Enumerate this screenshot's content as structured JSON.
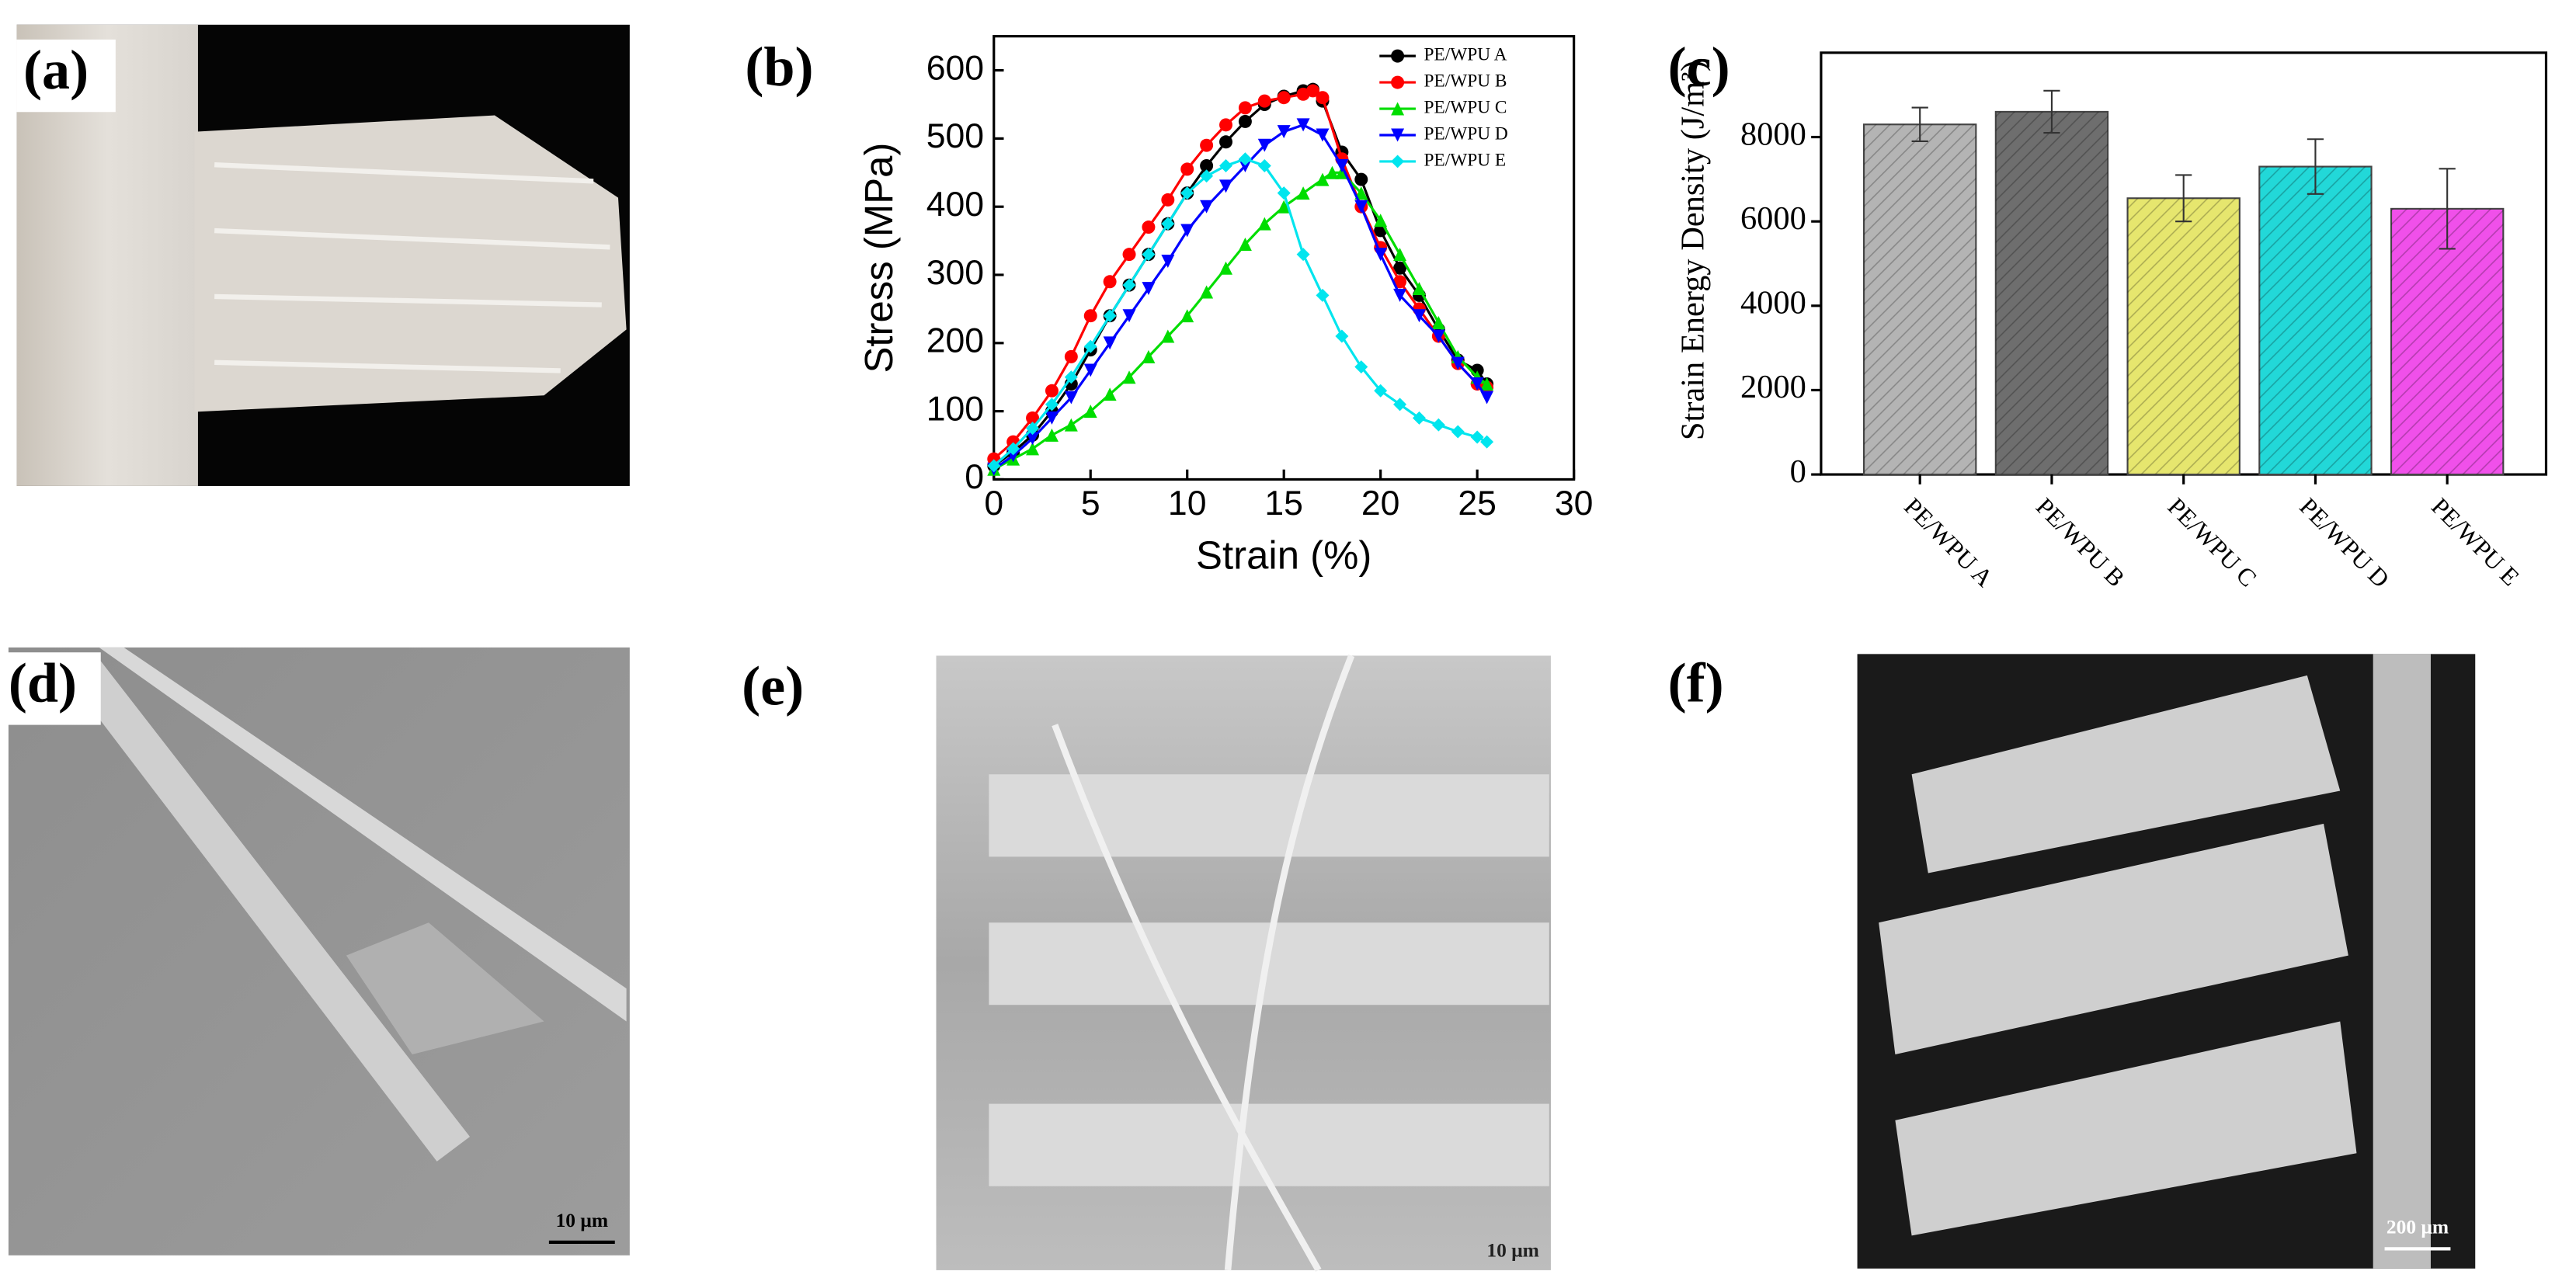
{
  "panel_labels": [
    "(a)",
    "(b)",
    "(c)",
    "(d)",
    "(e)",
    "(f)"
  ],
  "scale_bars": [
    "10 μm",
    "10 μm",
    "200 μm"
  ],
  "chart_data": [
    {
      "type": "line",
      "xlabel": "Strain (%)",
      "ylabel": "Stress (MPa)",
      "xlim": [
        0,
        30
      ],
      "ylim": [
        0,
        650
      ],
      "xticks": [
        0,
        5,
        10,
        15,
        20,
        25,
        30
      ],
      "yticks": [
        0,
        100,
        200,
        300,
        400,
        500,
        600
      ],
      "legend": "upper right",
      "series": [
        {
          "name": "PE/WPU A",
          "color": "#000000",
          "marker": "circle",
          "x": [
            0,
            1,
            2,
            3,
            4,
            5,
            6,
            7,
            8,
            9,
            10,
            11,
            12,
            13,
            14,
            15,
            16,
            16.5,
            17,
            18,
            19,
            20,
            21,
            22,
            23,
            24,
            25,
            25.5
          ],
          "values": [
            20,
            40,
            65,
            100,
            140,
            190,
            240,
            285,
            330,
            375,
            420,
            460,
            495,
            525,
            550,
            562,
            570,
            572,
            555,
            480,
            440,
            365,
            310,
            270,
            220,
            175,
            160,
            140
          ]
        },
        {
          "name": "PE/WPU B",
          "color": "#ff0000",
          "marker": "circle",
          "x": [
            0,
            1,
            2,
            3,
            4,
            5,
            6,
            7,
            8,
            9,
            10,
            11,
            12,
            13,
            14,
            15,
            16,
            16.5,
            17,
            18,
            19,
            20,
            21,
            22,
            23,
            24,
            25,
            25.5
          ],
          "values": [
            30,
            55,
            90,
            130,
            180,
            240,
            290,
            330,
            370,
            410,
            455,
            490,
            520,
            545,
            555,
            560,
            565,
            570,
            560,
            470,
            400,
            340,
            290,
            250,
            210,
            170,
            140,
            135
          ]
        },
        {
          "name": "PE/WPU C",
          "color": "#00dd00",
          "marker": "triangle-up",
          "x": [
            0,
            1,
            2,
            3,
            4,
            5,
            6,
            7,
            8,
            9,
            10,
            11,
            12,
            13,
            14,
            15,
            16,
            17,
            17.5,
            18,
            19,
            20,
            21,
            22,
            23,
            24,
            25,
            25.5
          ],
          "values": [
            15,
            30,
            45,
            65,
            80,
            100,
            125,
            150,
            180,
            210,
            240,
            275,
            310,
            345,
            375,
            400,
            420,
            440,
            450,
            450,
            420,
            380,
            330,
            280,
            230,
            180,
            150,
            140
          ]
        },
        {
          "name": "PE/WPU D",
          "color": "#0000ff",
          "marker": "triangle-down",
          "x": [
            0,
            1,
            2,
            3,
            4,
            5,
            6,
            7,
            8,
            9,
            10,
            11,
            12,
            13,
            14,
            15,
            16,
            17,
            18,
            19,
            20,
            21,
            22,
            23,
            24,
            25,
            25.5
          ],
          "values": [
            15,
            35,
            60,
            90,
            120,
            160,
            200,
            240,
            280,
            320,
            365,
            400,
            430,
            460,
            490,
            510,
            520,
            505,
            460,
            400,
            330,
            270,
            240,
            210,
            170,
            140,
            120
          ]
        },
        {
          "name": "PE/WPU E",
          "color": "#00e5ee",
          "marker": "diamond",
          "x": [
            0,
            1,
            2,
            3,
            4,
            5,
            6,
            7,
            8,
            9,
            10,
            11,
            12,
            13,
            14,
            15,
            16,
            17,
            18,
            19,
            20,
            21,
            22,
            23,
            24,
            25,
            25.5
          ],
          "values": [
            20,
            45,
            75,
            110,
            150,
            195,
            240,
            285,
            330,
            375,
            420,
            445,
            460,
            470,
            460,
            420,
            330,
            270,
            210,
            165,
            130,
            110,
            90,
            80,
            70,
            62,
            55
          ]
        }
      ]
    },
    {
      "type": "bar",
      "ylabel": "Strain Energy Density (J/m³)",
      "categories": [
        "PE/WPU A",
        "PE/WPU B",
        "PE/WPU C",
        "PE/WPU D",
        "PE/WPU E"
      ],
      "values": [
        8300,
        8600,
        6550,
        7300,
        6300
      ],
      "errors": [
        400,
        500,
        550,
        650,
        950
      ],
      "colors": [
        "#b4b4b4",
        "#6e6e6e",
        "#e6e66e",
        "#22d8d8",
        "#f050ea"
      ],
      "hatch": true,
      "ylim": [
        0,
        10000
      ],
      "yticks": [
        0,
        2000,
        4000,
        6000,
        8000
      ]
    }
  ]
}
